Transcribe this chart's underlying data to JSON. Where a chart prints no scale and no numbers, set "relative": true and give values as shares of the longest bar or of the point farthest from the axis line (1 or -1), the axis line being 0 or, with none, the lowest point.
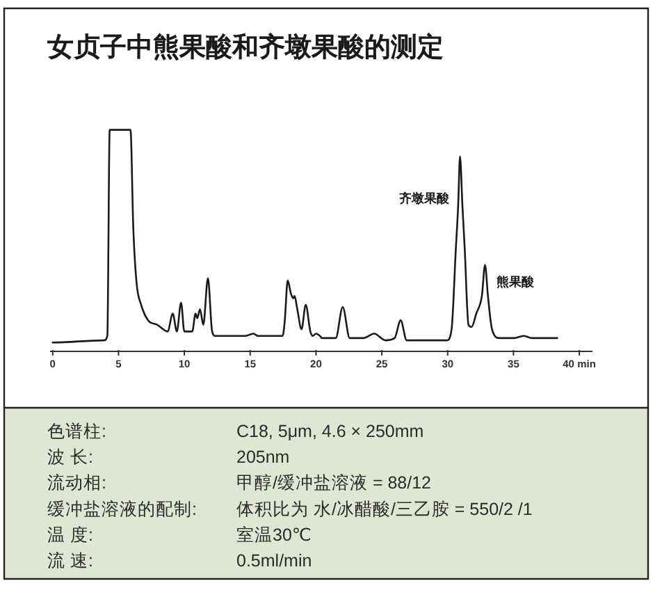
{
  "chart_data": {
    "type": "line",
    "title": "女贞子中熊果酸和齐墩果酸的测定",
    "relative": true,
    "tick_labels": "x",
    "x": [
      0,
      3.9,
      4.15,
      4.33,
      5.91,
      6.12,
      6.37,
      6.72,
      7.25,
      7.95,
      8.73,
      9.12,
      9.43,
      9.75,
      10.0,
      10.6,
      10.85,
      10.98,
      11.19,
      11.44,
      11.79,
      12.11,
      12.35,
      14.64,
      15.24,
      15.59,
      17.46,
      17.63,
      17.85,
      18.1,
      18.27,
      18.37,
      18.58,
      18.9,
      19.22,
      19.57,
      19.75,
      20.0,
      20.3,
      20.45,
      21.5,
      22.03,
      22.56,
      23.62,
      24.42,
      25.27,
      25.97,
      26.43,
      26.89,
      29.95,
      30.3,
      30.62,
      30.8,
      30.94,
      31.12,
      31.3,
      31.58,
      31.82,
      32.17,
      32.6,
      32.84,
      33.06,
      33.37,
      33.93,
      35.06,
      35.77,
      36.4,
      38.33
    ],
    "series": [
      {
        "color": "#1a1a1a",
        "values": [
          0.04,
          0.05,
          0.07,
          1.0,
          1.0,
          0.56,
          0.31,
          0.21,
          0.14,
          0.12,
          0.09,
          0.17,
          0.09,
          0.22,
          0.09,
          0.09,
          0.17,
          0.15,
          0.19,
          0.12,
          0.33,
          0.09,
          0.07,
          0.07,
          0.08,
          0.07,
          0.07,
          0.14,
          0.32,
          0.26,
          0.24,
          0.25,
          0.19,
          0.1,
          0.21,
          0.09,
          0.07,
          0.08,
          0.07,
          0.06,
          0.06,
          0.2,
          0.06,
          0.06,
          0.08,
          0.05,
          0.06,
          0.14,
          0.05,
          0.05,
          0.1,
          0.46,
          0.66,
          0.88,
          0.66,
          0.46,
          0.12,
          0.11,
          0.17,
          0.25,
          0.39,
          0.25,
          0.1,
          0.06,
          0.06,
          0.07,
          0.06,
          0.06
        ]
      }
    ],
    "xlim": [
      -0.2,
      41
    ],
    "xticks": [
      0,
      5,
      10,
      15,
      20,
      25,
      30,
      35,
      {
        "value": 40,
        "label": "40 min"
      }
    ],
    "annotations": [
      {
        "text": "齐墩果酸",
        "x": 30.94,
        "y": 0.88
      },
      {
        "text": "熊果酸",
        "x": 32.84,
        "y": 0.39
      },
      "色谱柱:",
      "C18, 5μm, 4.6 × 250mm",
      "波 长:",
      "205nm",
      "流动相:",
      "甲醇/缓冲盐溶液 = 88/12",
      "缓冲盐溶液的配制:",
      "体积比为 水/冰醋酸/三乙胺 = 550/2 /1",
      "温 度:",
      "室温30℃",
      "流 速:",
      "0.5ml/min"
    ]
  }
}
